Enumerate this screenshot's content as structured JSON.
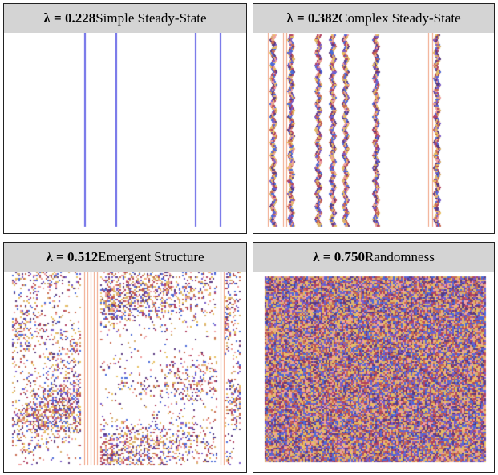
{
  "panels": [
    {
      "prefix": "λ = ",
      "value": "0.228",
      "label": " Simple Steady-State"
    },
    {
      "prefix": "λ = ",
      "value": "0.382",
      "label": " Complex Steady-State"
    },
    {
      "prefix": "λ = ",
      "value": "0.512",
      "label": " Emergent Structure"
    },
    {
      "prefix": "λ = ",
      "value": "0.750",
      "label": " Randomness"
    }
  ],
  "colors": {
    "blue_line": "#6a6ae8",
    "orange_line": "#f0a080",
    "palette": [
      "#7a5cc8",
      "#c86a50",
      "#e8c060",
      "#4a6ad8",
      "#b04060",
      "#f0a0a0",
      "#5a3a80",
      "#d8b070"
    ]
  }
}
